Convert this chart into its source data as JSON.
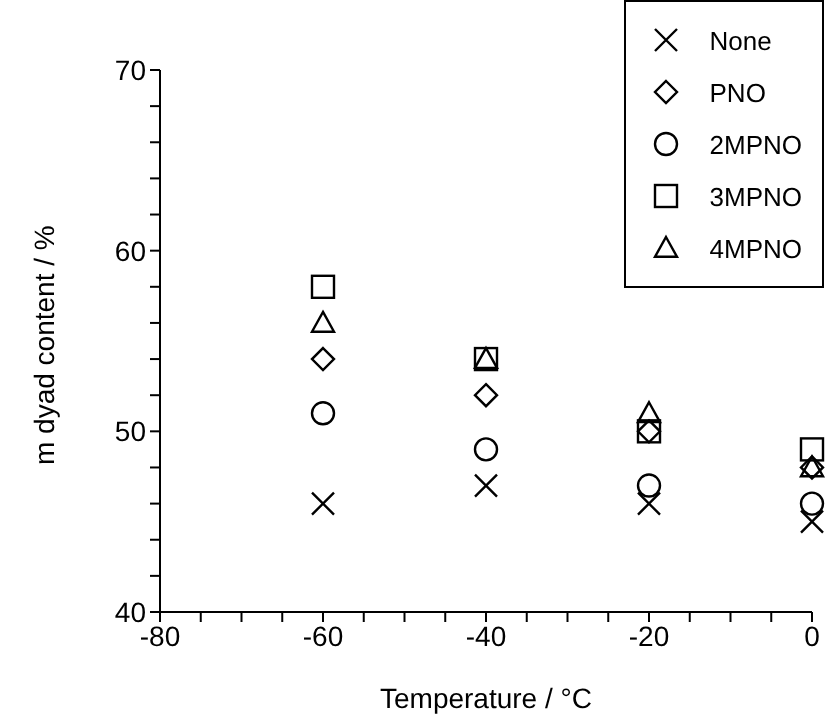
{
  "chart_data": {
    "type": "scatter",
    "xlabel": "Temperature / °C",
    "ylabel": "m dyad content / %",
    "x": [
      -60,
      -40,
      -20,
      0
    ],
    "series": [
      {
        "name": "None",
        "color": "#000000",
        "marker": "cross",
        "values": [
          46,
          47,
          46,
          45
        ]
      },
      {
        "name": "PNO",
        "color": "#000000",
        "marker": "diamond",
        "values": [
          54,
          52,
          50,
          48
        ]
      },
      {
        "name": "2MPNO",
        "color": "#000000",
        "marker": "circle",
        "values": [
          51,
          49,
          47,
          46
        ]
      },
      {
        "name": "3MPNO",
        "color": "#000000",
        "marker": "square",
        "values": [
          58,
          54,
          50,
          49
        ]
      },
      {
        "name": "4MPNO",
        "color": "#000000",
        "marker": "triangle",
        "values": [
          56,
          54,
          51,
          48
        ]
      }
    ],
    "xlim": [
      -80,
      0
    ],
    "xticks": [
      -80,
      {
        "value": -75,
        "label": null
      },
      {
        "value": -70,
        "label": null
      },
      {
        "value": -65,
        "label": null
      },
      -60,
      {
        "value": -55,
        "label": null
      },
      {
        "value": -50,
        "label": null
      },
      {
        "value": -45,
        "label": null
      },
      -40,
      {
        "value": -35,
        "label": null
      },
      {
        "value": -30,
        "label": null
      },
      {
        "value": -25,
        "label": null
      },
      -20,
      {
        "value": -15,
        "label": null
      },
      {
        "value": -10,
        "label": null
      },
      {
        "value": -5,
        "label": null
      },
      0
    ],
    "ylim": [
      40,
      70
    ],
    "yticks": [
      40,
      {
        "value": 42,
        "label": null
      },
      {
        "value": 44,
        "label": null
      },
      {
        "value": 46,
        "label": null
      },
      {
        "value": 48,
        "label": null
      },
      50,
      {
        "value": 52,
        "label": null
      },
      {
        "value": 54,
        "label": null
      },
      {
        "value": 56,
        "label": null
      },
      {
        "value": 58,
        "label": null
      },
      60,
      {
        "value": 62,
        "label": null
      },
      {
        "value": 64,
        "label": null
      },
      {
        "value": 66,
        "label": null
      },
      {
        "value": 68,
        "label": null
      },
      70
    ],
    "grid": false,
    "legend": "top right"
  }
}
